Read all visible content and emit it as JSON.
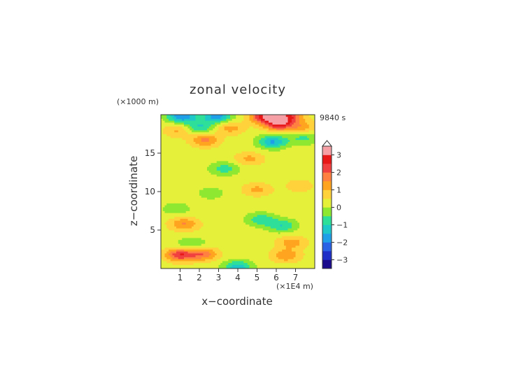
{
  "chart_data": {
    "type": "heatmap",
    "title": "zonal velocity",
    "xlabel": "x−coordinate",
    "ylabel": "z−coordinate",
    "x_unit": "(×1E4 m)",
    "y_unit": "(×1000 m)",
    "time_label": "9840 s",
    "xlim": [
      0,
      8
    ],
    "ylim": [
      0,
      20
    ],
    "x_ticks": [
      1,
      2,
      3,
      4,
      5,
      6,
      7
    ],
    "y_ticks": [
      5,
      10,
      15
    ],
    "colorbar": {
      "min": -3.5,
      "max": 3.5,
      "ticks": [
        3,
        2,
        1,
        0,
        -1,
        -2,
        -3
      ],
      "tick_labels": [
        "3",
        "2",
        "1",
        "0",
        "−1",
        "−2",
        "−3"
      ],
      "colors": [
        "#1a0a8c",
        "#1e2fc8",
        "#2a62e6",
        "#1f9fe8",
        "#1ec8c8",
        "#2edf9a",
        "#8ee832",
        "#e4f03a",
        "#ffd23c",
        "#ffa41e",
        "#ff8040",
        "#f04040",
        "#e81818",
        "#f6a0a6"
      ]
    },
    "field_features": [
      {
        "x": 1.0,
        "z": 1.8,
        "value": 2.2
      },
      {
        "x": 2.2,
        "z": 1.9,
        "value": 1.6
      },
      {
        "x": 6.5,
        "z": 1.7,
        "value": 1.2
      },
      {
        "x": 1.6,
        "z": 3.2,
        "value": -0.8
      },
      {
        "x": 6.8,
        "z": 3.4,
        "value": 1.0
      },
      {
        "x": 1.2,
        "z": 5.8,
        "value": 1.3
      },
      {
        "x": 5.2,
        "z": 6.4,
        "value": -1.1
      },
      {
        "x": 6.3,
        "z": 5.6,
        "value": -1.2
      },
      {
        "x": 0.8,
        "z": 7.8,
        "value": -0.6
      },
      {
        "x": 2.6,
        "z": 9.8,
        "value": -0.5
      },
      {
        "x": 5.0,
        "z": 10.3,
        "value": 0.9
      },
      {
        "x": 7.2,
        "z": 10.8,
        "value": 0.6
      },
      {
        "x": 3.3,
        "z": 13.0,
        "value": -1.0
      },
      {
        "x": 4.6,
        "z": 14.3,
        "value": 0.9
      },
      {
        "x": 2.3,
        "z": 16.7,
        "value": 1.4
      },
      {
        "x": 5.8,
        "z": 16.5,
        "value": -1.8
      },
      {
        "x": 7.4,
        "z": 17.0,
        "value": -0.9
      },
      {
        "x": 0.9,
        "z": 18.0,
        "value": 0.9
      },
      {
        "x": 2.0,
        "z": 18.4,
        "value": -1.3
      },
      {
        "x": 3.6,
        "z": 18.3,
        "value": 1.0
      },
      {
        "x": 6.1,
        "z": 18.8,
        "value": 2.3
      },
      {
        "x": 7.3,
        "z": 18.4,
        "value": 1.0
      },
      {
        "x": 1.1,
        "z": 19.8,
        "value": -2.2
      },
      {
        "x": 2.9,
        "z": 19.8,
        "value": -2.0
      },
      {
        "x": 5.4,
        "z": 19.8,
        "value": 2.6
      },
      {
        "x": 6.6,
        "z": 19.8,
        "value": 2.1
      },
      {
        "x": 4.0,
        "z": 0.2,
        "value": -1.6
      }
    ]
  }
}
